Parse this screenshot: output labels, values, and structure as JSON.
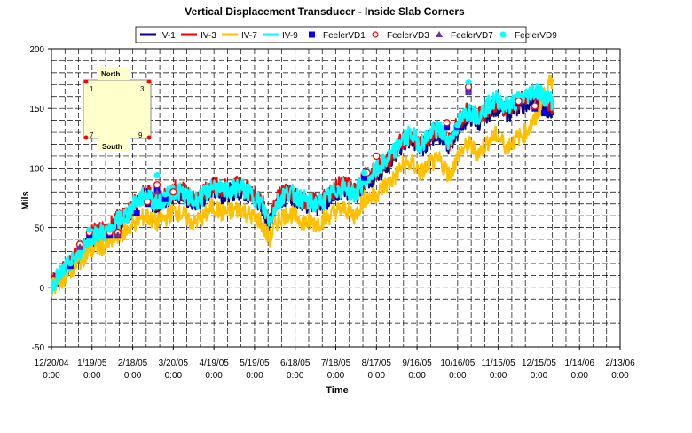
{
  "chart_data": {
    "type": "line",
    "title": "Vertical Displacement Transducer - Inside Slab Corners",
    "xlabel": "Time",
    "ylabel": "Mils",
    "ylim": [
      -50,
      200
    ],
    "yticks": [
      -50,
      0,
      50,
      100,
      150,
      200
    ],
    "xlim": [
      "2004-12-20",
      "2006-02-13"
    ],
    "xticks": [
      {
        "date": "2004-12-20",
        "line1": "12/20/04",
        "line2": "0:00"
      },
      {
        "date": "2005-01-19",
        "line1": "1/19/05",
        "line2": "0:00"
      },
      {
        "date": "2005-02-18",
        "line1": "2/18/05",
        "line2": "0:00"
      },
      {
        "date": "2005-03-20",
        "line1": "3/20/05",
        "line2": "0:00"
      },
      {
        "date": "2005-04-19",
        "line1": "4/19/05",
        "line2": "0:00"
      },
      {
        "date": "2005-05-19",
        "line1": "5/19/05",
        "line2": "0:00"
      },
      {
        "date": "2005-06-18",
        "line1": "6/18/05",
        "line2": "0:00"
      },
      {
        "date": "2005-07-18",
        "line1": "7/18/05",
        "line2": "0:00"
      },
      {
        "date": "2005-08-17",
        "line1": "8/17/05",
        "line2": "0:00"
      },
      {
        "date": "2005-09-16",
        "line1": "9/16/05",
        "line2": "0:00"
      },
      {
        "date": "2005-10-16",
        "line1": "10/16/05",
        "line2": "0:00"
      },
      {
        "date": "2005-11-15",
        "line1": "11/15/05",
        "line2": "0:00"
      },
      {
        "date": "2005-12-15",
        "line1": "12/15/05",
        "line2": "0:00"
      },
      {
        "date": "2006-01-14",
        "line1": "1/14/06",
        "line2": "0:00"
      },
      {
        "date": "2006-02-13",
        "line1": "2/13/06",
        "line2": "0:00"
      }
    ],
    "grid": true,
    "legend_position": "top",
    "series": [
      {
        "name": "IV-1",
        "kind": "line",
        "color": "#00008B",
        "x": [
          "2004-12-20",
          "2004-12-27",
          "2005-01-03",
          "2005-01-10",
          "2005-01-17",
          "2005-01-24",
          "2005-01-31",
          "2005-02-07",
          "2005-02-14",
          "2005-02-21",
          "2005-02-28",
          "2005-03-07",
          "2005-03-14",
          "2005-03-21",
          "2005-03-28",
          "2005-04-04",
          "2005-04-11",
          "2005-04-18",
          "2005-04-25",
          "2005-05-02",
          "2005-05-09",
          "2005-05-16",
          "2005-05-23",
          "2005-05-30",
          "2005-06-06",
          "2005-06-13",
          "2005-06-20",
          "2005-06-27",
          "2005-07-04",
          "2005-07-11",
          "2005-07-18",
          "2005-07-25",
          "2005-08-01",
          "2005-08-08",
          "2005-08-15",
          "2005-08-22",
          "2005-08-29",
          "2005-09-05",
          "2005-09-12",
          "2005-09-19",
          "2005-09-26",
          "2005-10-03",
          "2005-10-10",
          "2005-10-17",
          "2005-10-24",
          "2005-10-31",
          "2005-11-07",
          "2005-11-14",
          "2005-11-21",
          "2005-11-28",
          "2005-12-05",
          "2005-12-12",
          "2005-12-19",
          "2005-12-26"
        ],
        "y": [
          2,
          10,
          18,
          28,
          40,
          44,
          46,
          54,
          60,
          70,
          76,
          68,
          72,
          80,
          76,
          70,
          74,
          84,
          78,
          80,
          82,
          76,
          70,
          56,
          72,
          78,
          74,
          70,
          68,
          72,
          80,
          82,
          76,
          88,
          92,
          100,
          108,
          120,
          124,
          116,
          126,
          128,
          118,
          134,
          144,
          138,
          146,
          152,
          146,
          150,
          154,
          160,
          150,
          146
        ]
      },
      {
        "name": "IV-3",
        "kind": "line",
        "color": "#FF0000",
        "x": [
          "2004-12-20",
          "2004-12-27",
          "2005-01-03",
          "2005-01-10",
          "2005-01-17",
          "2005-01-24",
          "2005-01-31",
          "2005-02-07",
          "2005-02-14",
          "2005-02-21",
          "2005-02-28",
          "2005-03-07",
          "2005-03-14",
          "2005-03-21",
          "2005-03-28",
          "2005-04-04",
          "2005-04-11",
          "2005-04-18",
          "2005-04-25",
          "2005-05-02",
          "2005-05-09",
          "2005-05-16",
          "2005-05-23",
          "2005-05-30",
          "2005-06-06",
          "2005-06-13",
          "2005-06-20",
          "2005-06-27",
          "2005-07-04",
          "2005-07-11",
          "2005-07-18",
          "2005-07-25",
          "2005-08-01",
          "2005-08-08",
          "2005-08-15",
          "2005-08-22",
          "2005-08-29",
          "2005-09-05",
          "2005-09-12",
          "2005-09-19",
          "2005-09-26",
          "2005-10-03",
          "2005-10-10",
          "2005-10-17",
          "2005-10-24",
          "2005-10-31",
          "2005-11-07",
          "2005-11-14",
          "2005-11-21",
          "2005-11-28",
          "2005-12-05",
          "2005-12-12",
          "2005-12-19",
          "2005-12-26"
        ],
        "y": [
          4,
          12,
          20,
          30,
          44,
          48,
          48,
          58,
          62,
          72,
          80,
          72,
          76,
          82,
          80,
          74,
          78,
          86,
          82,
          84,
          86,
          80,
          74,
          58,
          76,
          80,
          76,
          72,
          72,
          76,
          84,
          86,
          80,
          92,
          96,
          104,
          110,
          124,
          128,
          120,
          130,
          132,
          122,
          140,
          148,
          142,
          150,
          156,
          150,
          154,
          158,
          164,
          158,
          152
        ]
      },
      {
        "name": "IV-7",
        "kind": "line",
        "color": "#FFC000",
        "x": [
          "2004-12-20",
          "2004-12-27",
          "2005-01-03",
          "2005-01-10",
          "2005-01-17",
          "2005-01-24",
          "2005-01-31",
          "2005-02-07",
          "2005-02-14",
          "2005-02-21",
          "2005-02-28",
          "2005-03-07",
          "2005-03-14",
          "2005-03-21",
          "2005-03-28",
          "2005-04-04",
          "2005-04-11",
          "2005-04-18",
          "2005-04-25",
          "2005-05-02",
          "2005-05-09",
          "2005-05-16",
          "2005-05-23",
          "2005-05-30",
          "2005-06-06",
          "2005-06-13",
          "2005-06-20",
          "2005-06-27",
          "2005-07-04",
          "2005-07-11",
          "2005-07-18",
          "2005-07-25",
          "2005-08-01",
          "2005-08-08",
          "2005-08-15",
          "2005-08-22",
          "2005-08-29",
          "2005-09-05",
          "2005-09-12",
          "2005-09-19",
          "2005-09-26",
          "2005-10-03",
          "2005-10-10",
          "2005-10-17",
          "2005-10-24",
          "2005-10-31",
          "2005-11-07",
          "2005-11-14",
          "2005-11-21",
          "2005-11-28",
          "2005-12-05",
          "2005-12-12",
          "2005-12-19",
          "2005-12-26"
        ],
        "y": [
          0,
          6,
          14,
          22,
          30,
          34,
          36,
          44,
          48,
          56,
          60,
          54,
          58,
          64,
          60,
          54,
          58,
          68,
          62,
          64,
          66,
          60,
          56,
          40,
          58,
          62,
          58,
          54,
          54,
          58,
          64,
          66,
          60,
          74,
          76,
          84,
          90,
          102,
          104,
          96,
          104,
          106,
          94,
          112,
          120,
          112,
          122,
          128,
          118,
          124,
          130,
          140,
          160,
          178
        ]
      },
      {
        "name": "IV-9",
        "kind": "line",
        "color": "#00FFFF",
        "x": [
          "2004-12-20",
          "2004-12-27",
          "2005-01-03",
          "2005-01-10",
          "2005-01-17",
          "2005-01-24",
          "2005-01-31",
          "2005-02-07",
          "2005-02-14",
          "2005-02-21",
          "2005-02-28",
          "2005-03-07",
          "2005-03-14",
          "2005-03-21",
          "2005-03-28",
          "2005-04-04",
          "2005-04-11",
          "2005-04-18",
          "2005-04-25",
          "2005-05-02",
          "2005-05-09",
          "2005-05-16",
          "2005-05-23",
          "2005-05-30",
          "2005-06-06",
          "2005-06-13",
          "2005-06-20",
          "2005-06-27",
          "2005-07-04",
          "2005-07-11",
          "2005-07-18",
          "2005-07-25",
          "2005-08-01",
          "2005-08-08",
          "2005-08-15",
          "2005-08-22",
          "2005-08-29",
          "2005-09-05",
          "2005-09-12",
          "2005-09-19",
          "2005-09-26",
          "2005-10-03",
          "2005-10-10",
          "2005-10-17",
          "2005-10-24",
          "2005-10-31",
          "2005-11-07",
          "2005-11-14",
          "2005-11-21",
          "2005-11-28",
          "2005-12-05",
          "2005-12-12",
          "2005-12-19",
          "2005-12-26"
        ],
        "y": [
          2,
          12,
          20,
          30,
          42,
          46,
          46,
          56,
          62,
          72,
          78,
          70,
          74,
          82,
          78,
          72,
          76,
          86,
          80,
          82,
          84,
          78,
          72,
          56,
          74,
          80,
          76,
          72,
          70,
          74,
          82,
          84,
          78,
          90,
          96,
          104,
          112,
          124,
          128,
          120,
          130,
          132,
          122,
          138,
          148,
          144,
          152,
          158,
          152,
          156,
          160,
          166,
          160,
          156
        ]
      },
      {
        "name": "FeelerVD1",
        "kind": "marker",
        "marker": "square",
        "color": "#0000FF",
        "x": [
          "2005-01-03",
          "2005-01-10",
          "2005-01-17",
          "2005-02-01",
          "2005-02-07",
          "2005-02-21",
          "2005-03-01",
          "2005-03-08",
          "2005-03-14",
          "2005-08-08",
          "2005-10-08",
          "2005-10-16",
          "2005-10-24",
          "2005-11-30",
          "2005-12-12",
          "2005-12-19"
        ],
        "y": [
          18,
          34,
          44,
          44,
          44,
          62,
          70,
          82,
          74,
          92,
          134,
          134,
          164,
          154,
          150,
          146
        ]
      },
      {
        "name": "FeelerVD3",
        "kind": "marker",
        "marker": "circle-open",
        "color": "#FF0000",
        "x": [
          "2005-01-10",
          "2005-01-17",
          "2005-02-01",
          "2005-02-07",
          "2005-03-01",
          "2005-03-08",
          "2005-03-20",
          "2005-08-10",
          "2005-08-17",
          "2005-10-08",
          "2005-10-24",
          "2005-11-30",
          "2005-12-12"
        ],
        "y": [
          36,
          46,
          46,
          46,
          72,
          86,
          80,
          96,
          110,
          138,
          168,
          156,
          152
        ]
      },
      {
        "name": "FeelerVD7",
        "kind": "marker",
        "marker": "triangle",
        "color": "#7030A0",
        "x": [
          "2005-01-10",
          "2005-02-07",
          "2005-03-08",
          "2005-10-24"
        ],
        "y": [
          34,
          44,
          80,
          164
        ]
      },
      {
        "name": "FeelerVD9",
        "kind": "marker",
        "marker": "circle",
        "color": "#00FFFF",
        "x": [
          "2005-01-03",
          "2005-01-17",
          "2005-02-01",
          "2005-02-14",
          "2005-03-01",
          "2005-03-08",
          "2005-03-14",
          "2005-08-08",
          "2005-10-16",
          "2005-10-24",
          "2005-12-12",
          "2005-12-19"
        ],
        "y": [
          20,
          48,
          48,
          56,
          76,
          94,
          78,
          96,
          136,
          172,
          162,
          158
        ]
      }
    ]
  },
  "inset": {
    "north": "North",
    "south": "South",
    "corners": [
      "1",
      "3",
      "7",
      "9"
    ]
  },
  "legend": {
    "swatch_colors": [
      "#00008B",
      "#FF0000",
      "#FFC000",
      "#00FFFF",
      "#0000FF",
      "#FF0000",
      "#7030A0",
      "#00FFFF"
    ]
  }
}
